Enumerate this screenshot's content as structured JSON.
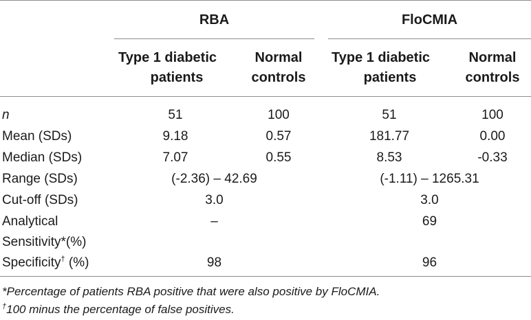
{
  "groups": {
    "rba": "RBA",
    "flocmia": "FloCMIA"
  },
  "columns": {
    "rba_t1d": [
      "Type 1 diabetic",
      "patients"
    ],
    "rba_ctrl": [
      "Normal",
      "controls"
    ],
    "flo_t1d": [
      "Type 1 diabetic",
      "patients"
    ],
    "flo_ctrl": [
      "Normal",
      "controls"
    ]
  },
  "rows": {
    "n": {
      "label": "n",
      "rba_t1d": "51",
      "rba_ctrl": "100",
      "flo_t1d": "51",
      "flo_ctrl": "100"
    },
    "mean": {
      "label": "Mean (SDs)",
      "rba_t1d": "9.18",
      "rba_ctrl": "0.57",
      "flo_t1d": "181.77",
      "flo_ctrl": "0.00"
    },
    "median": {
      "label": "Median (SDs)",
      "rba_t1d": "7.07",
      "rba_ctrl": "0.55",
      "flo_t1d": "8.53",
      "flo_ctrl": "-0.33"
    },
    "range": {
      "label": "Range (SDs)",
      "rba": "(-2.36) – 42.69",
      "flo": "(-1.11) – 1265.31"
    },
    "cutoff": {
      "label": "Cut-off (SDs)",
      "rba": "3.0",
      "flo": "3.0"
    },
    "sensitivity": {
      "label_line1": "Analytical",
      "label_line2": "Sensitivity*(%)",
      "rba": "–",
      "flo": "69"
    },
    "specificity": {
      "label": "Specificity",
      "label_mark": "†",
      "label_suffix": " (%)",
      "rba": "98",
      "flo": "96"
    }
  },
  "footnotes": {
    "star": "*Percentage of patients RBA positive that were also positive by FloCMIA.",
    "dagger_mark": "†",
    "dagger": "100 minus the percentage of false positives."
  }
}
